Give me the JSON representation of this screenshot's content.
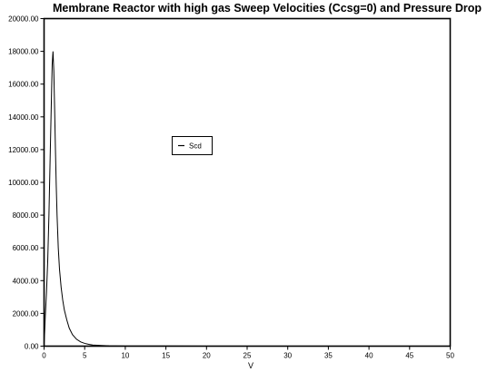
{
  "chart_data": {
    "type": "line",
    "title": "Membrane Reactor with high gas Sweep Velocities (Ccsg=0) and Pressure Drop",
    "xlabel": "V",
    "ylabel": "",
    "xlim": [
      0,
      50
    ],
    "ylim": [
      0,
      20000
    ],
    "x_ticks": [
      "0",
      "5",
      "10",
      "15",
      "20",
      "25",
      "30",
      "35",
      "40",
      "45",
      "50"
    ],
    "y_ticks": [
      "0.00",
      "2000.00",
      "4000.00",
      "6000.00",
      "8000.00",
      "10000.00",
      "12000.00",
      "14000.00",
      "16000.00",
      "18000.00",
      "20000.00"
    ],
    "grid": false,
    "legend": {
      "position": "center",
      "entries": [
        "Scd"
      ]
    },
    "series": [
      {
        "name": "Scd",
        "color": "#000000",
        "x": [
          0,
          0.15,
          0.3,
          0.45,
          0.6,
          0.75,
          0.9,
          1.0,
          1.1,
          1.2,
          1.3,
          1.4,
          1.5,
          1.6,
          1.75,
          1.9,
          2.1,
          2.3,
          2.5,
          2.8,
          3.1,
          3.5,
          4.0,
          4.5,
          5.0,
          5.5,
          6.0,
          7.0,
          8.0,
          10,
          15,
          20,
          25,
          30,
          35,
          40,
          45,
          50
        ],
        "y": [
          0,
          1800,
          3300,
          5200,
          8000,
          11500,
          15000,
          17200,
          18000,
          16800,
          14500,
          12000,
          9800,
          8000,
          6000,
          4700,
          3600,
          2800,
          2200,
          1600,
          1100,
          700,
          420,
          260,
          170,
          110,
          70,
          40,
          20,
          10,
          5,
          3,
          2,
          1,
          1,
          0,
          0,
          0
        ]
      }
    ]
  }
}
